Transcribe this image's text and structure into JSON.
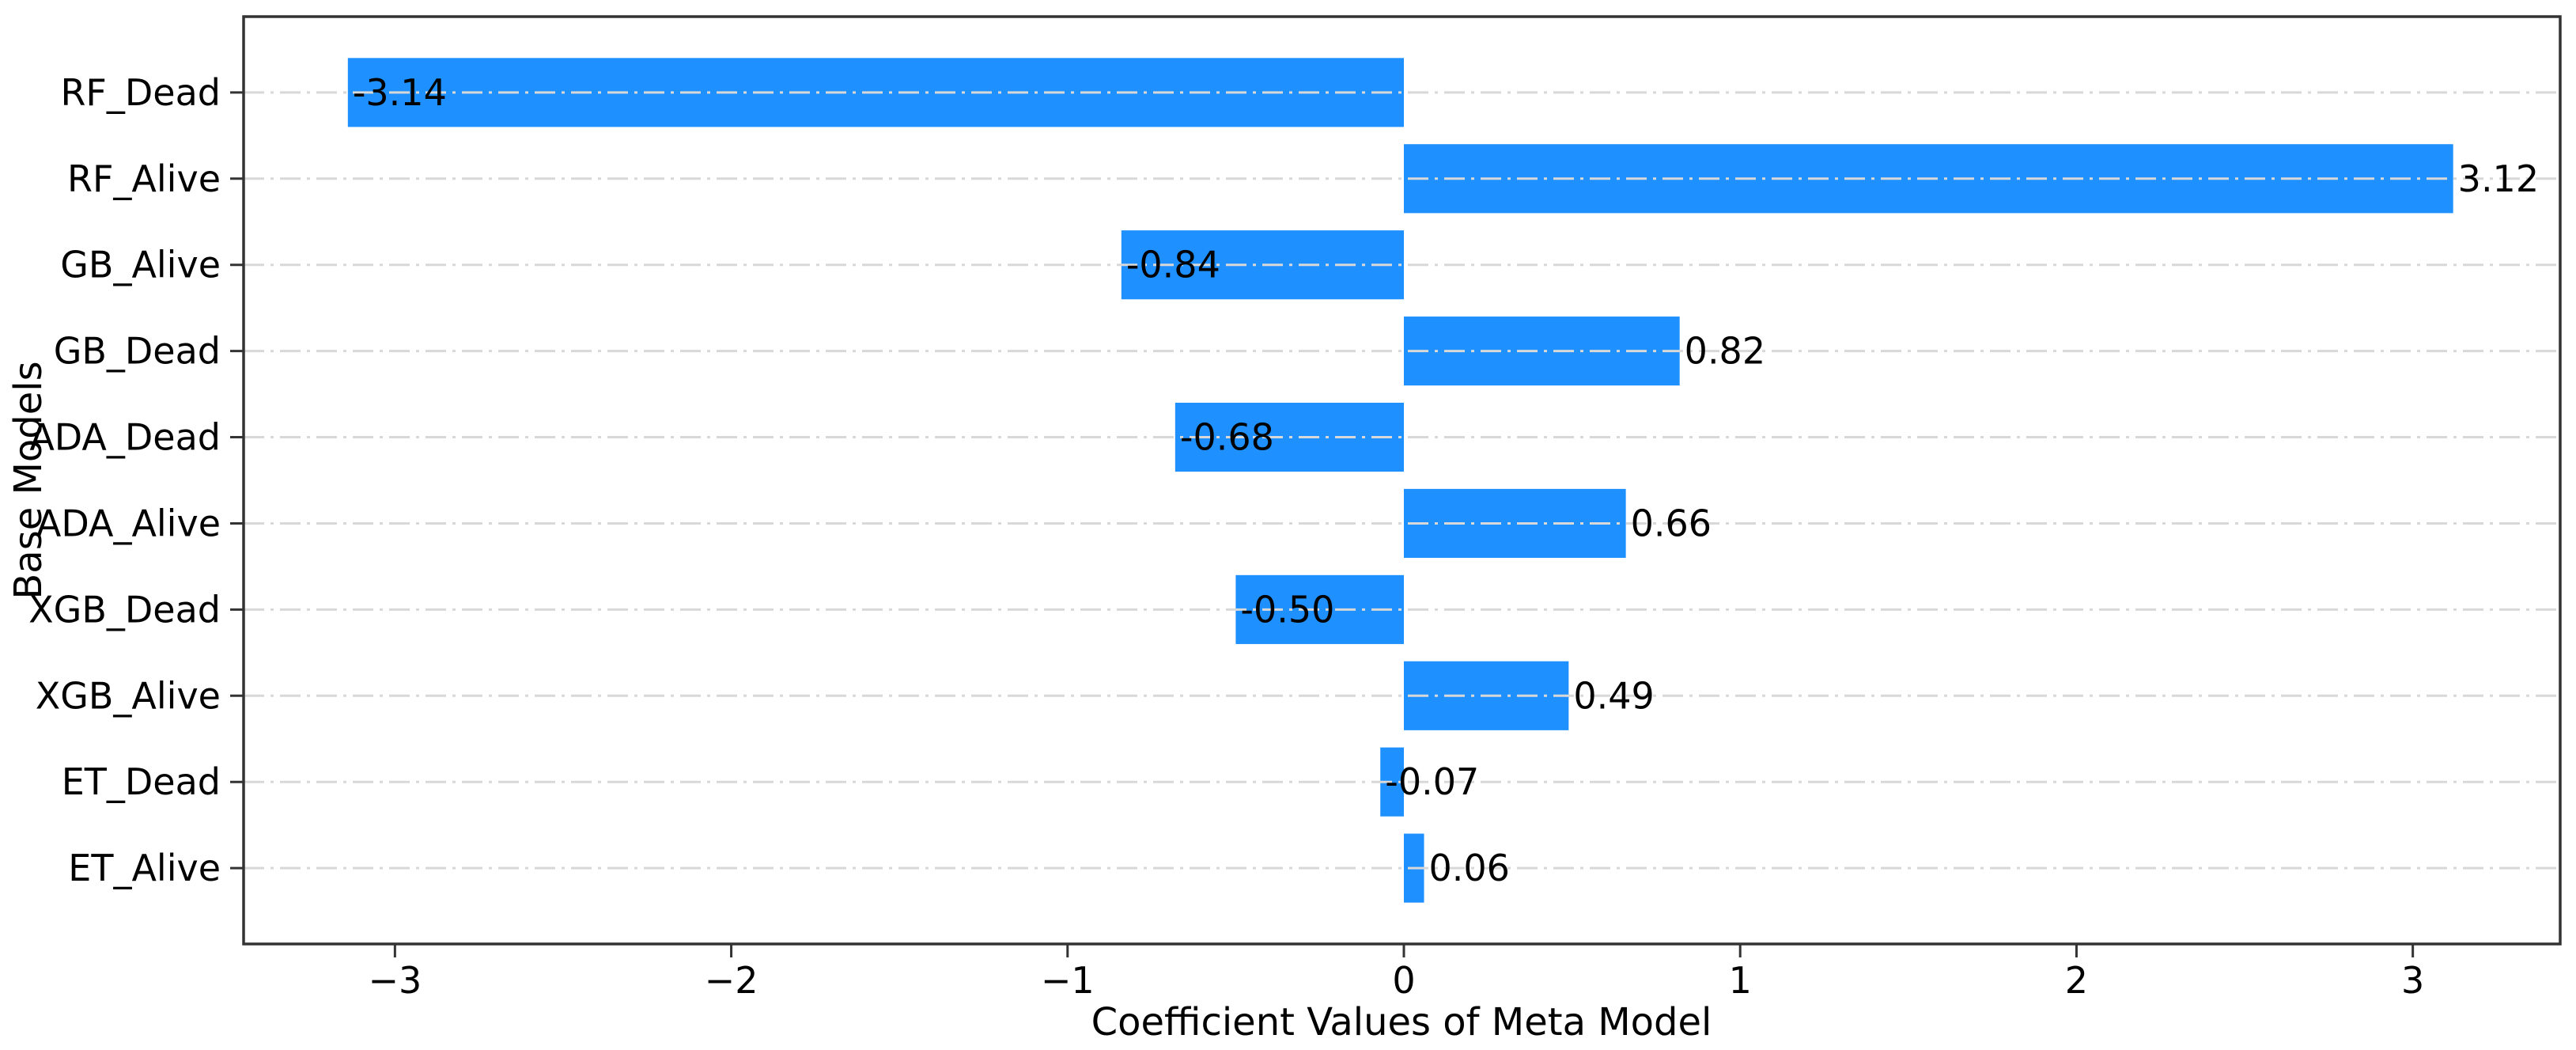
{
  "chart_data": {
    "type": "bar",
    "orientation": "horizontal",
    "title": "",
    "xlabel": "Coefficient Values of Meta Model",
    "ylabel": "Base Models",
    "categories": [
      "RF_Dead",
      "RF_Alive",
      "GB_Alive",
      "GB_Dead",
      "ADA_Dead",
      "ADA_Alive",
      "XGB_Dead",
      "XGB_Alive",
      "ET_Dead",
      "ET_Alive"
    ],
    "values": [
      -3.14,
      3.12,
      -0.84,
      0.82,
      -0.68,
      0.66,
      -0.5,
      0.49,
      -0.07,
      0.06
    ],
    "value_labels": [
      "-3.14",
      "3.12",
      "-0.84",
      "0.82",
      "-0.68",
      "0.66",
      "-0.50",
      "0.49",
      "-0.07",
      "0.06"
    ],
    "xlim": [
      -3.45,
      3.45
    ],
    "x_ticks": [
      -3,
      -2,
      -1,
      0,
      1,
      2,
      3
    ],
    "x_tick_labels": [
      "−3",
      "−2",
      "−1",
      "0",
      "1",
      "2",
      "3"
    ],
    "grid": "horizontal-dashdot-over-bars",
    "legend": "none",
    "bar_color": "#1E90FF",
    "grid_color": "#D8D8D8",
    "spine_color": "#333333",
    "tick_color": "#333333",
    "text_color": "#000000",
    "background_color": "#ffffff"
  }
}
